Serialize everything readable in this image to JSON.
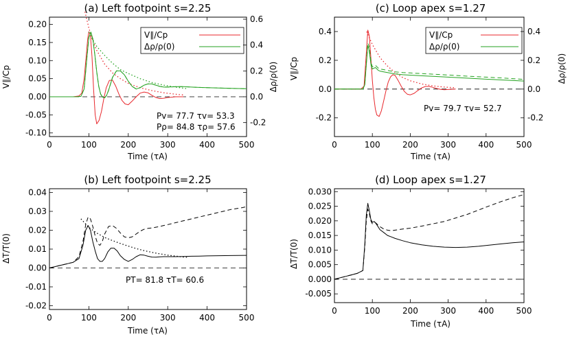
{
  "chart_data": [
    {
      "id": "a",
      "type": "line",
      "title": "(a) Left footpoint s=2.25",
      "xlabel": "Time (τA)",
      "ylabel": "V∥/Cp",
      "ylabel_right": "Δρ/ρ(0)",
      "xlim": [
        0,
        500
      ],
      "ylim": [
        -0.11,
        0.22
      ],
      "ylim_right": [
        -0.308,
        0.616
      ],
      "xticks": [
        "0",
        "100",
        "200",
        "300",
        "400",
        "500"
      ],
      "yticks": [
        "-0.10",
        "-0.05",
        "0.00",
        "0.05",
        "0.10",
        "0.15",
        "0.20"
      ],
      "yticks_right": [
        "-0.2",
        "0.0",
        "0.2",
        "0.4",
        "0.6"
      ],
      "legend": [
        "V∥/Cp",
        "Δρ/ρ(0)"
      ],
      "annotations": [
        "Pv= 77.7  τv= 53.3",
        "Pρ= 84.8  τρ= 57.6"
      ],
      "colors": {
        "velocity": "#e8262b",
        "density": "#23a21f"
      },
      "series": [
        {
          "name": "V∥/Cp",
          "style": "solid",
          "color": "#e8262b",
          "x": [
            0,
            60,
            75,
            82,
            88,
            93,
            97,
            100,
            104,
            108,
            112,
            116,
            120,
            126,
            132,
            138,
            144,
            152,
            160,
            168,
            176,
            184,
            192,
            200,
            210,
            220,
            230,
            240,
            250,
            260,
            270,
            280,
            290,
            300,
            320,
            340
          ],
          "y": [
            0,
            0,
            0.002,
            0.01,
            0.05,
            0.11,
            0.16,
            0.18,
            0.17,
            0.11,
            0.02,
            -0.05,
            -0.075,
            -0.065,
            -0.04,
            -0.005,
            0.025,
            0.045,
            0.046,
            0.03,
            0.008,
            -0.01,
            -0.02,
            -0.022,
            -0.012,
            0,
            0.01,
            0.013,
            0.011,
            0.004,
            -0.002,
            -0.005,
            -0.004,
            -0.002,
            0,
            0
          ]
        },
        {
          "name": "",
          "style": "dotted",
          "color": "#e8262b",
          "x": [
            90,
            100,
            110,
            120,
            140,
            160,
            180,
            200,
            230,
            260,
            290,
            320,
            340
          ],
          "y": [
            0.235,
            0.19,
            0.155,
            0.128,
            0.09,
            0.066,
            0.05,
            0.037,
            0.025,
            0.017,
            0.011,
            0.007,
            0.005
          ]
        },
        {
          "name": "Δρ/ρ(0)",
          "style": "solid",
          "color": "#23a21f",
          "axis": "right",
          "x": [
            0,
            70,
            80,
            88,
            95,
            100,
            105,
            110,
            115,
            120,
            125,
            130,
            135,
            140,
            145,
            150,
            155,
            160,
            170,
            180,
            190,
            200,
            210,
            220,
            230,
            240,
            250,
            260,
            270,
            280,
            290,
            300,
            320,
            340,
            360,
            380,
            400,
            430,
            460,
            500
          ],
          "y": [
            0,
            0,
            0.003,
            0.06,
            0.3,
            0.46,
            0.5,
            0.45,
            0.33,
            0.19,
            0.08,
            0.02,
            -0.003,
            -0.008,
            0.01,
            0.05,
            0.1,
            0.15,
            0.2,
            0.2,
            0.17,
            0.12,
            0.08,
            0.06,
            0.07,
            0.09,
            0.1,
            0.1,
            0.09,
            0.08,
            0.075,
            0.075,
            0.078,
            0.078,
            0.075,
            0.072,
            0.07,
            0.068,
            0.065,
            0.062
          ]
        },
        {
          "name": "",
          "style": "dashed",
          "color": "#23a21f",
          "axis": "right",
          "x": [
            0,
            70,
            80,
            88,
            95,
            100,
            105,
            110,
            115,
            120,
            125,
            130,
            135,
            140,
            145,
            150,
            155,
            160,
            170,
            180,
            190,
            200,
            210,
            220,
            230,
            240,
            250,
            260,
            270,
            280,
            290,
            300,
            320,
            340,
            360,
            380,
            400,
            430,
            460,
            500
          ],
          "y": [
            0,
            0,
            0.003,
            0.06,
            0.3,
            0.46,
            0.5,
            0.45,
            0.33,
            0.19,
            0.08,
            0.02,
            -0.003,
            -0.008,
            0.01,
            0.05,
            0.1,
            0.15,
            0.2,
            0.2,
            0.17,
            0.12,
            0.08,
            0.06,
            0.07,
            0.09,
            0.1,
            0.1,
            0.09,
            0.08,
            0.075,
            0.075,
            0.078,
            0.078,
            0.075,
            0.072,
            0.07,
            0.068,
            0.065,
            0.062
          ]
        },
        {
          "name": "",
          "style": "dotted",
          "color": "#23a21f",
          "axis": "right",
          "x": [
            100,
            110,
            120,
            140,
            160,
            180,
            200,
            230,
            260,
            290,
            320,
            350
          ],
          "y": [
            0.5,
            0.44,
            0.39,
            0.32,
            0.26,
            0.21,
            0.18,
            0.14,
            0.11,
            0.09,
            0.075,
            0.062
          ]
        }
      ]
    },
    {
      "id": "c",
      "type": "line",
      "title": "(c) Loop apex s=1.27",
      "xlabel": "Time (τA)",
      "ylabel": "V∥/Cp",
      "ylabel_right": "Δρ/ρ(0)",
      "xlim": [
        0,
        500
      ],
      "ylim": [
        -0.33,
        0.5
      ],
      "ylim_right": [
        -0.33,
        0.5
      ],
      "xticks": [
        "0",
        "100",
        "200",
        "300",
        "400",
        "500"
      ],
      "yticks": [
        "-0.2",
        "0.0",
        "0.2",
        "0.4"
      ],
      "yticks_right": [
        "-0.2",
        "0.0",
        "0.2",
        "0.4"
      ],
      "legend": [
        "V∥/Cp",
        "Δρ/ρ(0)"
      ],
      "annotations": [
        "Pv= 79.7  τv= 52.7"
      ],
      "colors": {
        "velocity": "#e8262b",
        "density": "#23a21f"
      },
      "series": [
        {
          "name": "V∥/Cp",
          "style": "solid",
          "color": "#e8262b",
          "x": [
            0,
            70,
            78,
            84,
            88,
            92,
            96,
            100,
            104,
            108,
            112,
            118,
            124,
            130,
            136,
            142,
            148,
            154,
            160,
            168,
            176,
            184,
            192,
            200,
            210,
            220,
            230,
            240,
            250,
            260,
            270,
            280,
            290,
            300,
            320
          ],
          "y": [
            0,
            0,
            0.02,
            0.25,
            0.41,
            0.37,
            0.22,
            0.06,
            -0.06,
            -0.14,
            -0.18,
            -0.19,
            -0.15,
            -0.08,
            -0.01,
            0.05,
            0.085,
            0.1,
            0.095,
            0.06,
            0.02,
            -0.015,
            -0.035,
            -0.04,
            -0.03,
            -0.01,
            0.008,
            0.018,
            0.018,
            0.012,
            0.004,
            -0.002,
            -0.004,
            -0.003,
            0
          ]
        },
        {
          "name": "",
          "style": "dotted",
          "color": "#e8262b",
          "x": [
            85,
            100,
            120,
            140,
            160,
            180,
            200,
            230,
            260,
            290,
            320
          ],
          "y": [
            0.4,
            0.31,
            0.22,
            0.16,
            0.115,
            0.08,
            0.058,
            0.036,
            0.022,
            0.014,
            0.009
          ]
        },
        {
          "name": "Δρ/ρ(0)",
          "style": "solid",
          "color": "#23a21f",
          "axis": "right",
          "x": [
            0,
            75,
            80,
            85,
            88,
            91,
            94,
            97,
            100,
            104,
            108,
            112,
            116,
            120,
            130,
            140,
            150,
            160,
            180,
            200,
            250,
            300,
            350,
            400,
            450,
            500
          ],
          "y": [
            0,
            0,
            0.03,
            0.2,
            0.3,
            0.28,
            0.22,
            0.16,
            0.14,
            0.145,
            0.15,
            0.14,
            0.13,
            0.125,
            0.12,
            0.115,
            0.11,
            0.105,
            0.1,
            0.097,
            0.09,
            0.083,
            0.076,
            0.069,
            0.062,
            0.056
          ]
        },
        {
          "name": "",
          "style": "dashed",
          "color": "#23a21f",
          "axis": "right",
          "x": [
            0,
            75,
            80,
            85,
            88,
            91,
            94,
            97,
            100,
            104,
            108,
            112,
            116,
            120,
            130,
            140,
            150,
            160,
            180,
            200,
            250,
            300,
            350,
            400,
            450,
            500
          ],
          "y": [
            0,
            0,
            0.03,
            0.21,
            0.32,
            0.3,
            0.24,
            0.18,
            0.155,
            0.16,
            0.165,
            0.155,
            0.145,
            0.14,
            0.135,
            0.13,
            0.125,
            0.12,
            0.115,
            0.112,
            0.105,
            0.098,
            0.09,
            0.083,
            0.076,
            0.068
          ]
        }
      ]
    },
    {
      "id": "b",
      "type": "line",
      "title": "(b) Left footpoint s=2.25",
      "xlabel": "Time (τA)",
      "ylabel": "ΔT/T(0)",
      "xlim": [
        0,
        500
      ],
      "ylim": [
        -0.022,
        0.042
      ],
      "xticks": [
        "0",
        "100",
        "200",
        "300",
        "400",
        "500"
      ],
      "yticks": [
        "-0.02",
        "-0.01",
        "0.00",
        "0.01",
        "0.02",
        "0.03",
        "0.04"
      ],
      "annotations": [
        "PT= 81.8  τT= 60.6"
      ],
      "series": [
        {
          "name": "",
          "style": "solid",
          "color": "#000000",
          "x": [
            0,
            30,
            60,
            75,
            85,
            92,
            98,
            104,
            110,
            116,
            122,
            128,
            134,
            140,
            148,
            156,
            164,
            172,
            180,
            190,
            200,
            210,
            220,
            230,
            240,
            250,
            260,
            270,
            280,
            290,
            300,
            320,
            340,
            360,
            380,
            400,
            430,
            460,
            500
          ],
          "y": [
            0,
            0.0015,
            0.003,
            0.005,
            0.012,
            0.02,
            0.0225,
            0.02,
            0.014,
            0.009,
            0.005,
            0.0035,
            0.0035,
            0.005,
            0.0085,
            0.0105,
            0.0105,
            0.009,
            0.0065,
            0.0045,
            0.0035,
            0.0045,
            0.006,
            0.007,
            0.0068,
            0.0062,
            0.0058,
            0.0057,
            0.0059,
            0.006,
            0.006,
            0.006,
            0.0061,
            0.0062,
            0.0063,
            0.0064,
            0.0065,
            0.0066,
            0.0067
          ]
        },
        {
          "name": "",
          "style": "dashed",
          "color": "#000000",
          "x": [
            0,
            30,
            60,
            75,
            85,
            92,
            98,
            104,
            110,
            116,
            122,
            128,
            134,
            140,
            150,
            160,
            170,
            180,
            190,
            200,
            210,
            220,
            230,
            240,
            250,
            260,
            280,
            300,
            330,
            360,
            400,
            430,
            460,
            490,
            500
          ],
          "y": [
            0,
            0.0015,
            0.003,
            0.006,
            0.014,
            0.023,
            0.027,
            0.026,
            0.022,
            0.017,
            0.013,
            0.012,
            0.014,
            0.018,
            0.022,
            0.0225,
            0.021,
            0.0185,
            0.0165,
            0.016,
            0.0165,
            0.018,
            0.0195,
            0.0205,
            0.021,
            0.0212,
            0.022,
            0.023,
            0.0245,
            0.026,
            0.028,
            0.0295,
            0.031,
            0.032,
            0.0325
          ]
        },
        {
          "name": "",
          "style": "dotted",
          "color": "#000000",
          "x": [
            80,
            100,
            120,
            140,
            160,
            180,
            200,
            220,
            240,
            260,
            280,
            300,
            320,
            340,
            350
          ],
          "y": [
            0.026,
            0.0215,
            0.0185,
            0.0162,
            0.0145,
            0.013,
            0.0116,
            0.0103,
            0.0092,
            0.0083,
            0.0075,
            0.0068,
            0.0063,
            0.0058,
            0.0056
          ]
        }
      ]
    },
    {
      "id": "d",
      "type": "line",
      "title": "(d) Loop apex s=1.27",
      "xlabel": "Time (τA)",
      "ylabel": "ΔT/T(0)",
      "xlim": [
        0,
        500
      ],
      "ylim": [
        -0.008,
        0.031
      ],
      "xticks": [
        "0",
        "100",
        "200",
        "300",
        "400",
        "500"
      ],
      "yticks": [
        "-0.005",
        "0.000",
        "0.005",
        "0.010",
        "0.015",
        "0.020",
        "0.025",
        "0.030"
      ],
      "series": [
        {
          "name": "",
          "style": "solid",
          "color": "#000000",
          "x": [
            0,
            30,
            60,
            75,
            80,
            84,
            88,
            92,
            96,
            100,
            105,
            110,
            115,
            120,
            130,
            140,
            150,
            160,
            180,
            200,
            230,
            260,
            290,
            320,
            350,
            380,
            410,
            440,
            470,
            500
          ],
          "y": [
            0,
            0.001,
            0.002,
            0.003,
            0.012,
            0.022,
            0.026,
            0.0235,
            0.0205,
            0.0195,
            0.0198,
            0.019,
            0.018,
            0.017,
            0.016,
            0.015,
            0.0145,
            0.014,
            0.0132,
            0.0125,
            0.0118,
            0.0113,
            0.011,
            0.0109,
            0.011,
            0.0113,
            0.0117,
            0.0121,
            0.0125,
            0.0128
          ]
        },
        {
          "name": "",
          "style": "dashed",
          "color": "#000000",
          "x": [
            0,
            30,
            60,
            75,
            80,
            84,
            88,
            92,
            96,
            100,
            105,
            110,
            115,
            120,
            130,
            140,
            150,
            160,
            180,
            200,
            230,
            260,
            290,
            320,
            350,
            380,
            410,
            440,
            470,
            500
          ],
          "y": [
            0,
            0.001,
            0.002,
            0.003,
            0.011,
            0.02,
            0.024,
            0.0225,
            0.02,
            0.019,
            0.0195,
            0.0192,
            0.0185,
            0.018,
            0.0172,
            0.0168,
            0.0166,
            0.0168,
            0.0172,
            0.0175,
            0.0182,
            0.019,
            0.0198,
            0.021,
            0.0222,
            0.0237,
            0.0252,
            0.0266,
            0.0279,
            0.029
          ]
        }
      ]
    }
  ]
}
